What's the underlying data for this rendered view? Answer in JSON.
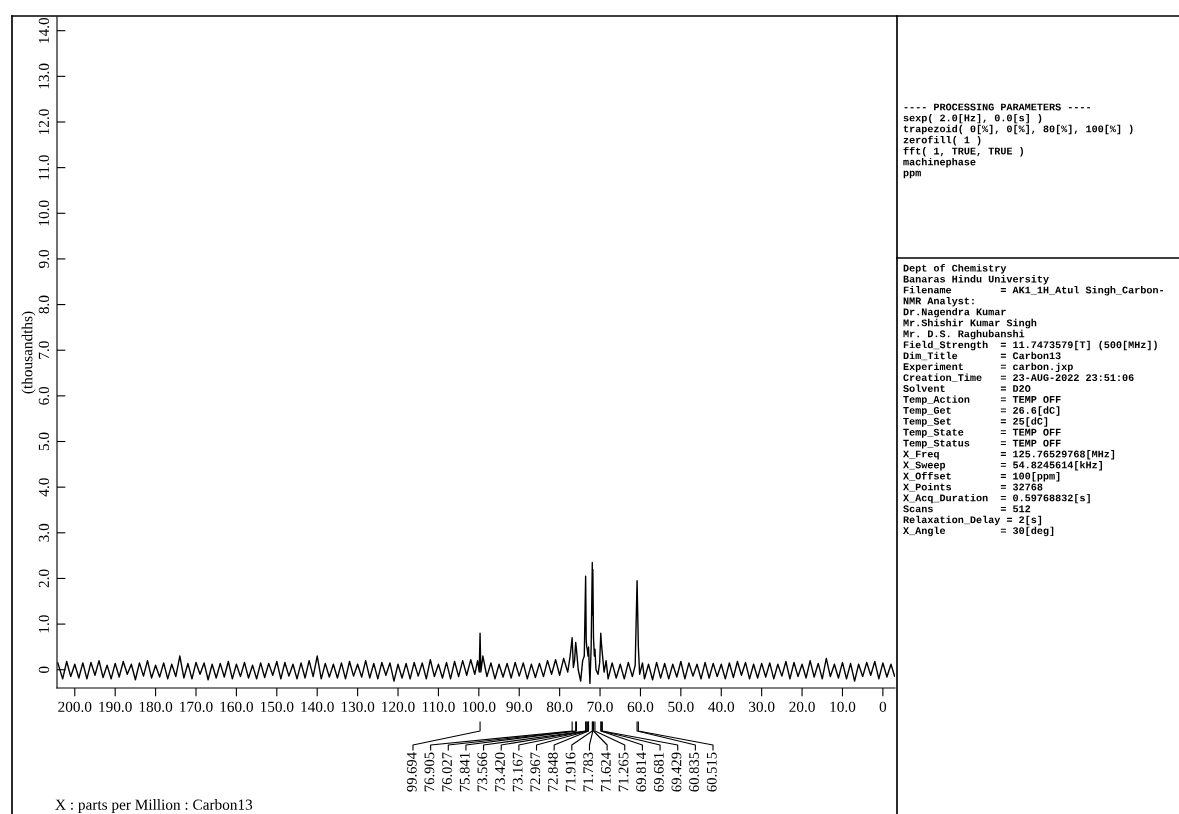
{
  "chart_data": {
    "type": "line",
    "ylabel": "(thousandths)",
    "xlim": [
      204.4,
      -3.0
    ],
    "ylim": [
      -0.4,
      14.3
    ],
    "xticks": [
      {
        "value": 200,
        "label": "200.0"
      },
      {
        "value": 190,
        "label": "190.0"
      },
      {
        "value": 180,
        "label": "180.0"
      },
      {
        "value": 170,
        "label": "170.0"
      },
      {
        "value": 160,
        "label": "160.0"
      },
      {
        "value": 150,
        "label": "150.0"
      },
      {
        "value": 140,
        "label": "140.0"
      },
      {
        "value": 130,
        "label": "130.0"
      },
      {
        "value": 120,
        "label": "120.0"
      },
      {
        "value": 110,
        "label": "110.0"
      },
      {
        "value": 100,
        "label": "100.0"
      },
      {
        "value": 90,
        "label": "90.0"
      },
      {
        "value": 80,
        "label": "80.0"
      },
      {
        "value": 70,
        "label": "70.0"
      },
      {
        "value": 60,
        "label": "60.0"
      },
      {
        "value": 50,
        "label": "50.0"
      },
      {
        "value": 40,
        "label": "40.0"
      },
      {
        "value": 30,
        "label": "30.0"
      },
      {
        "value": 20,
        "label": "20.0"
      },
      {
        "value": 10,
        "label": "10.0"
      },
      0
    ],
    "yticks": [
      0,
      {
        "value": 1,
        "label": "1.0"
      },
      {
        "value": 2,
        "label": "2.0"
      },
      {
        "value": 3,
        "label": "3.0"
      },
      {
        "value": 4,
        "label": "4.0"
      },
      {
        "value": 5,
        "label": "5.0"
      },
      {
        "value": 6,
        "label": "6.0"
      },
      {
        "value": 7,
        "label": "7.0"
      },
      {
        "value": 8,
        "label": "8.0"
      },
      {
        "value": 9,
        "label": "9.0"
      },
      {
        "value": 10,
        "label": "10.0"
      },
      {
        "value": 11,
        "label": "11.0"
      },
      {
        "value": 12,
        "label": "12.0"
      },
      {
        "value": 13,
        "label": "13.0"
      },
      {
        "value": 14,
        "label": "14.0"
      }
    ],
    "grid": false,
    "series": [
      {
        "color": "#000000",
        "x": [
          204.2,
          203,
          202,
          201,
          200,
          199,
          198,
          197,
          196,
          195,
          194,
          193,
          192,
          191,
          190,
          189,
          188,
          187,
          186,
          185,
          184,
          183,
          182,
          181,
          180,
          179,
          178,
          177,
          176,
          175,
          174,
          173,
          172,
          171,
          170,
          169,
          168,
          167,
          166,
          165,
          164,
          163,
          162,
          161,
          160,
          159,
          158,
          157,
          156,
          155,
          154,
          153,
          152,
          151,
          150,
          149,
          148,
          147,
          146,
          145,
          144,
          143,
          142,
          141,
          140,
          139,
          138,
          137,
          136,
          135,
          134,
          133,
          132,
          131,
          130,
          129,
          128,
          127,
          126,
          125,
          124,
          123,
          122,
          121,
          120,
          119,
          118,
          117,
          116,
          115,
          114,
          113,
          112,
          111,
          110,
          109,
          108,
          107,
          106,
          105,
          104,
          103,
          102,
          101,
          100.3,
          99.9,
          99.694,
          99.5,
          99.0,
          98,
          97,
          96,
          95,
          94,
          93,
          92,
          91,
          90,
          89,
          88,
          87,
          86,
          85,
          84,
          83,
          82,
          81,
          80,
          79,
          78,
          77.4,
          76.905,
          76.6,
          76.3,
          76.027,
          75.841,
          75.4,
          74.8,
          74.3,
          73.9,
          73.566,
          73.42,
          73.3,
          73.167,
          72.967,
          72.848,
          72.5,
          72.2,
          71.916,
          71.85,
          71.783,
          71.624,
          71.4,
          71.265,
          71.0,
          70.5,
          70.1,
          69.814,
          69.681,
          69.429,
          69.0,
          68.5,
          68,
          67,
          66,
          65,
          64,
          63,
          62,
          61.3,
          60.835,
          60.515,
          60.2,
          59.5,
          59,
          58,
          57,
          56,
          55,
          54,
          53,
          52,
          51,
          50,
          49,
          48,
          47,
          46,
          45,
          44,
          43,
          42,
          41,
          40,
          39,
          38,
          37,
          36,
          35,
          34,
          33,
          32,
          31,
          30,
          29,
          28,
          27,
          26,
          25,
          24,
          23,
          22,
          21,
          20,
          19,
          18,
          17,
          16,
          15,
          14,
          13,
          12,
          11,
          10,
          9,
          8,
          7,
          6,
          5,
          4,
          3,
          2,
          1,
          0,
          -1,
          -2,
          -2.9
        ],
        "values": [
          0.15,
          -0.2,
          0.18,
          -0.15,
          0.12,
          -0.18,
          0.15,
          -0.2,
          0.16,
          -0.12,
          0.2,
          -0.17,
          0.1,
          -0.2,
          0.14,
          -0.16,
          0.18,
          -0.1,
          0.12,
          -0.22,
          0.15,
          -0.14,
          0.2,
          -0.18,
          0.1,
          -0.16,
          0.15,
          -0.2,
          0.12,
          -0.15,
          0.3,
          -0.18,
          0.14,
          -0.2,
          0.16,
          -0.1,
          0.15,
          -0.22,
          0.12,
          -0.18,
          0.14,
          -0.16,
          0.18,
          -0.2,
          0.12,
          -0.15,
          0.16,
          -0.18,
          0.1,
          -0.2,
          0.15,
          -0.17,
          0.14,
          -0.12,
          0.18,
          -0.2,
          0.16,
          -0.14,
          0.12,
          -0.2,
          0.15,
          -0.18,
          0.2,
          -0.15,
          0.3,
          -0.2,
          0.14,
          -0.16,
          0.12,
          -0.18,
          0.15,
          -0.2,
          0.18,
          -0.14,
          0.12,
          -0.16,
          0.2,
          -0.18,
          0.14,
          -0.2,
          0.16,
          -0.12,
          0.15,
          -0.25,
          0.12,
          -0.18,
          0.14,
          -0.2,
          0.16,
          -0.14,
          0.15,
          -0.2,
          0.22,
          -0.15,
          0.12,
          -0.18,
          0.16,
          -0.2,
          0.18,
          -0.15,
          0.2,
          -0.12,
          0.22,
          -0.1,
          0.2,
          -0.05,
          0.8,
          -0.05,
          0.3,
          -0.15,
          0.15,
          -0.2,
          0.12,
          -0.16,
          0.14,
          -0.18,
          0.16,
          -0.14,
          0.15,
          -0.2,
          0.12,
          -0.17,
          0.14,
          -0.15,
          0.2,
          -0.1,
          0.22,
          -0.12,
          0.25,
          -0.05,
          0.3,
          0.7,
          0.05,
          0.2,
          0.6,
          0.45,
          0.0,
          -0.25,
          0.2,
          0.3,
          2.05,
          0.65,
          0.5,
          0.45,
          0.3,
          0.5,
          -0.3,
          0.5,
          2.35,
          1.2,
          2.2,
          0.7,
          0.3,
          0.45,
          0.0,
          -0.1,
          0.15,
          0.8,
          0.6,
          0.35,
          -0.05,
          0.2,
          -0.2,
          0.15,
          -0.18,
          0.12,
          -0.2,
          0.16,
          -0.15,
          0.1,
          1.95,
          0.5,
          -0.1,
          0.15,
          -0.2,
          0.12,
          -0.22,
          0.16,
          -0.18,
          0.14,
          -0.2,
          0.12,
          -0.16,
          0.18,
          -0.2,
          0.15,
          -0.14,
          0.12,
          -0.2,
          0.16,
          -0.18,
          0.14,
          -0.15,
          0.12,
          -0.2,
          0.15,
          -0.17,
          0.18,
          -0.12,
          0.16,
          -0.2,
          0.12,
          -0.18,
          0.14,
          -0.16,
          0.15,
          -0.2,
          0.12,
          -0.14,
          0.18,
          -0.2,
          0.16,
          -0.15,
          0.12,
          -0.18,
          0.2,
          -0.16,
          0.14,
          -0.2,
          0.25,
          -0.15,
          0.12,
          -0.18,
          0.16,
          -0.2,
          0.14,
          -0.25,
          0.12,
          -0.15,
          0.16,
          -0.12,
          0.18,
          -0.2,
          0.15,
          -0.16,
          0.12,
          -0.14
        ]
      }
    ],
    "annotations": [
      {
        "text": "99.694",
        "x": 99.694
      },
      {
        "text": "76.905",
        "x": 76.905
      },
      {
        "text": "76.027",
        "x": 76.027
      },
      {
        "text": "75.841",
        "x": 75.841
      },
      {
        "text": "73.566",
        "x": 73.566
      },
      {
        "text": "73.420",
        "x": 73.42
      },
      {
        "text": "73.167",
        "x": 73.167
      },
      {
        "text": "72.967",
        "x": 72.967
      },
      {
        "text": "72.848",
        "x": 72.848
      },
      {
        "text": "71.916",
        "x": 71.916
      },
      {
        "text": "71.783",
        "x": 71.783
      },
      {
        "text": "71.624",
        "x": 71.624
      },
      {
        "text": "71.265",
        "x": 71.265
      },
      {
        "text": "69.814",
        "x": 69.814
      },
      {
        "text": "69.681",
        "x": 69.681
      },
      {
        "text": "69.429",
        "x": 69.429
      },
      {
        "text": "60.835",
        "x": 60.835
      },
      {
        "text": "60.515",
        "x": 60.515
      },
      "X : parts per Million : Carbon13",
      "---- PROCESSING PARAMETERS ----\nsexp( 2.0[Hz], 0.0[s] )\ntrapezoid( 0[%], 0[%], 80[%], 100[%] )\nzerofill( 1 )\nfft( 1, TRUE, TRUE )\nmachinephase\nppm",
      "Dept of Chemistry\nBanaras Hindu University\nFilename        = AK1_1H_Atul Singh_Carbon-\nNMR Analyst:\nDr.Nagendra Kumar\nMr.Shishir Kumar Singh\nMr. D.S. Raghubanshi\nField_Strength  = 11.7473579[T] (500[MHz])\nDim_Title       = Carbon13\nExperiment      = carbon.jxp\nCreation_Time   = 23-AUG-2022 23:51:06\nSolvent         = D2O\nTemp_Action     = TEMP OFF\nTemp_Get        = 26.6[dC]\nTemp_Set        = 25[dC]\nTemp_State      = TEMP OFF\nTemp_Status     = TEMP OFF\nX_Freq          = 125.76529768[MHz]\nX_Sweep         = 54.8245614[kHz]\nX_Offset        = 100[ppm]\nX_Points        = 32768\nX_Acq_Duration  = 0.59768832[s]\nScans           = 512\nRelaxation_Delay = 2[s]\nX_Angle         = 30[deg]"
    ]
  }
}
